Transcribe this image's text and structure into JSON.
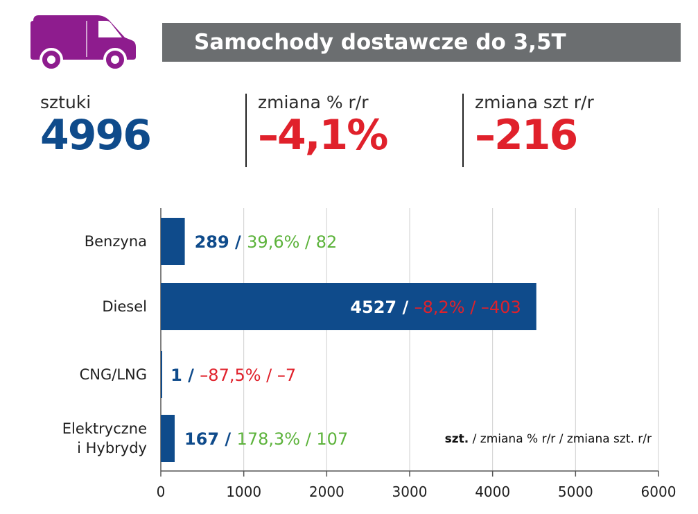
{
  "header": {
    "title": "Samochody dostawcze do 3,5T",
    "icon": "van-icon",
    "icon_color": "#8e1c8e",
    "bar_color": "#6b6e70"
  },
  "stats": [
    {
      "label": "sztuki",
      "value": "4996",
      "color": "#0f4b8b"
    },
    {
      "label": "zmiana % r/r",
      "value": "–4,1%",
      "color": "#e0212b"
    },
    {
      "label": "zmiana szt r/r",
      "value": "–216",
      "color": "#e0212b"
    }
  ],
  "chart_data": {
    "type": "bar",
    "orientation": "horizontal",
    "categories": [
      [
        "Benzyna"
      ],
      [
        "Diesel"
      ],
      [
        "CNG/LNG"
      ],
      [
        "Elektryczne",
        "i Hybrydy"
      ]
    ],
    "values": [
      289,
      4527,
      1,
      167
    ],
    "pct_change": [
      "39,6%",
      "–8,2%",
      "–87,5%",
      "178,3%"
    ],
    "unit_change": [
      "82",
      "–403",
      "–7",
      "107"
    ],
    "change_positive": [
      true,
      false,
      false,
      true
    ],
    "xlim": [
      0,
      6000
    ],
    "xticks": [
      0,
      1000,
      2000,
      3000,
      4000,
      5000,
      6000
    ],
    "grid": true,
    "legend_note": {
      "bold": "szt.",
      "rest": " / zmiana % r/r / zmiana szt. r/r"
    },
    "colors": {
      "bar": "#0f4b8b",
      "positive": "#5db33c",
      "negative": "#e0212b",
      "value": "#0f4b8b",
      "grid": "#cfcfcf",
      "axis": "#555555"
    }
  }
}
